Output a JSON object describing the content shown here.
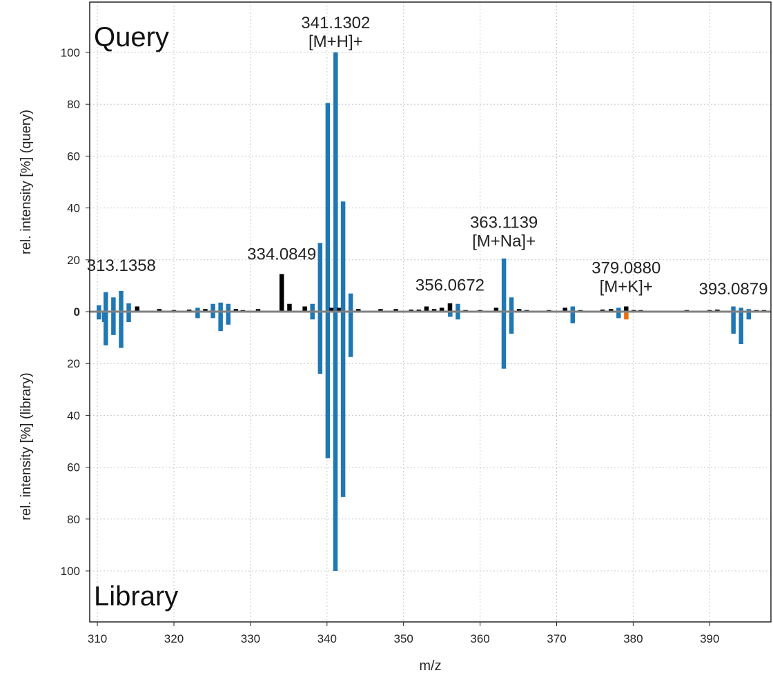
{
  "chart_data": {
    "type": "bar",
    "xlabel": "m/z",
    "ylabel_top": "rel. intensity [%] (query)",
    "ylabel_bottom": "rel. intensity [%] (library)",
    "top_label": "Query",
    "bottom_label": "Library",
    "xlim": [
      309,
      398
    ],
    "ylim_query": [
      0,
      112
    ],
    "ylim_library": [
      0,
      112
    ],
    "x_ticks": [
      310,
      320,
      330,
      340,
      350,
      360,
      370,
      380,
      390
    ],
    "y_ticks_query": [
      0,
      20,
      40,
      60,
      80,
      100
    ],
    "y_ticks_library": [
      20,
      40,
      60,
      80,
      100
    ],
    "grid": true,
    "colors": {
      "matched": "#1f77b4",
      "unmatched": "#000000",
      "highlight": "#e8710a",
      "baseline": "#808080",
      "grid": "#c8c8c8"
    },
    "query_peaks": [
      {
        "mz": 310.2,
        "intensity": 2.5,
        "matched": true
      },
      {
        "mz": 311.1,
        "intensity": 7.5,
        "matched": true
      },
      {
        "mz": 312.1,
        "intensity": 5.5,
        "matched": true
      },
      {
        "mz": 313.1,
        "intensity": 8.0,
        "matched": true
      },
      {
        "mz": 314.1,
        "intensity": 3.2,
        "matched": true
      },
      {
        "mz": 315.2,
        "intensity": 2.0,
        "matched": false
      },
      {
        "mz": 318.1,
        "intensity": 1.0,
        "matched": false
      },
      {
        "mz": 320.0,
        "intensity": 0.6,
        "matched": false
      },
      {
        "mz": 322.0,
        "intensity": 0.8,
        "matched": false
      },
      {
        "mz": 323.1,
        "intensity": 1.5,
        "matched": true
      },
      {
        "mz": 324.1,
        "intensity": 1.0,
        "matched": false
      },
      {
        "mz": 325.1,
        "intensity": 3.0,
        "matched": true
      },
      {
        "mz": 326.1,
        "intensity": 3.5,
        "matched": true
      },
      {
        "mz": 327.1,
        "intensity": 3.0,
        "matched": true
      },
      {
        "mz": 328.1,
        "intensity": 1.0,
        "matched": false
      },
      {
        "mz": 329.0,
        "intensity": 0.6,
        "matched": false
      },
      {
        "mz": 331.0,
        "intensity": 1.0,
        "matched": false
      },
      {
        "mz": 334.0849,
        "intensity": 14.5,
        "matched": false
      },
      {
        "mz": 335.1,
        "intensity": 3.0,
        "matched": false
      },
      {
        "mz": 337.1,
        "intensity": 2.0,
        "matched": false
      },
      {
        "mz": 338.1,
        "intensity": 3.0,
        "matched": true
      },
      {
        "mz": 339.1,
        "intensity": 26.5,
        "matched": true
      },
      {
        "mz": 340.1,
        "intensity": 80.5,
        "matched": true
      },
      {
        "mz": 340.6,
        "intensity": 1.5,
        "matched": false
      },
      {
        "mz": 341.1302,
        "intensity": 100.0,
        "matched": true
      },
      {
        "mz": 341.6,
        "intensity": 1.5,
        "matched": false
      },
      {
        "mz": 342.1,
        "intensity": 42.5,
        "matched": true
      },
      {
        "mz": 343.1,
        "intensity": 7.0,
        "matched": true
      },
      {
        "mz": 344.1,
        "intensity": 1.0,
        "matched": false
      },
      {
        "mz": 347.0,
        "intensity": 1.0,
        "matched": false
      },
      {
        "mz": 349.0,
        "intensity": 1.0,
        "matched": false
      },
      {
        "mz": 351.0,
        "intensity": 0.8,
        "matched": false
      },
      {
        "mz": 352.0,
        "intensity": 0.8,
        "matched": false
      },
      {
        "mz": 353.0,
        "intensity": 2.0,
        "matched": false
      },
      {
        "mz": 354.0,
        "intensity": 1.0,
        "matched": false
      },
      {
        "mz": 355.0,
        "intensity": 1.5,
        "matched": false
      },
      {
        "mz": 356.0672,
        "intensity": 3.2,
        "matched": false
      },
      {
        "mz": 357.1,
        "intensity": 3.0,
        "matched": true
      },
      {
        "mz": 358.1,
        "intensity": 0.6,
        "matched": false
      },
      {
        "mz": 360.0,
        "intensity": 0.6,
        "matched": false
      },
      {
        "mz": 362.1,
        "intensity": 1.5,
        "matched": false
      },
      {
        "mz": 363.1139,
        "intensity": 20.5,
        "matched": true
      },
      {
        "mz": 364.1,
        "intensity": 5.5,
        "matched": true
      },
      {
        "mz": 365.1,
        "intensity": 1.0,
        "matched": false
      },
      {
        "mz": 366.1,
        "intensity": 0.6,
        "matched": false
      },
      {
        "mz": 369.0,
        "intensity": 0.6,
        "matched": false
      },
      {
        "mz": 371.1,
        "intensity": 1.5,
        "matched": false
      },
      {
        "mz": 372.1,
        "intensity": 2.0,
        "matched": true
      },
      {
        "mz": 373.1,
        "intensity": 0.6,
        "matched": false
      },
      {
        "mz": 376.0,
        "intensity": 0.8,
        "matched": false
      },
      {
        "mz": 377.1,
        "intensity": 1.0,
        "matched": false
      },
      {
        "mz": 378.1,
        "intensity": 1.5,
        "matched": true
      },
      {
        "mz": 379.088,
        "intensity": 2.0,
        "matched": false
      },
      {
        "mz": 380.1,
        "intensity": 0.6,
        "matched": false
      },
      {
        "mz": 381.0,
        "intensity": 0.6,
        "matched": false
      },
      {
        "mz": 387.0,
        "intensity": 0.6,
        "matched": false
      },
      {
        "mz": 390.0,
        "intensity": 0.6,
        "matched": false
      },
      {
        "mz": 391.0,
        "intensity": 0.8,
        "matched": false
      },
      {
        "mz": 393.0879,
        "intensity": 2.0,
        "matched": true
      },
      {
        "mz": 394.1,
        "intensity": 1.5,
        "matched": true
      },
      {
        "mz": 395.1,
        "intensity": 1.0,
        "matched": true
      },
      {
        "mz": 396.1,
        "intensity": 0.6,
        "matched": false
      },
      {
        "mz": 397.1,
        "intensity": 0.6,
        "matched": false
      }
    ],
    "library_peaks": [
      {
        "mz": 310.2,
        "intensity": 3.0,
        "matched": true
      },
      {
        "mz": 310.9,
        "intensity": 4.0,
        "matched": true
      },
      {
        "mz": 311.1,
        "intensity": 13.0,
        "matched": true
      },
      {
        "mz": 312.1,
        "intensity": 9.0,
        "matched": true
      },
      {
        "mz": 313.1,
        "intensity": 14.0,
        "matched": true
      },
      {
        "mz": 314.1,
        "intensity": 4.0,
        "matched": true
      },
      {
        "mz": 323.1,
        "intensity": 2.5,
        "matched": true
      },
      {
        "mz": 325.1,
        "intensity": 2.5,
        "matched": true
      },
      {
        "mz": 326.1,
        "intensity": 7.5,
        "matched": true
      },
      {
        "mz": 327.1,
        "intensity": 5.0,
        "matched": true
      },
      {
        "mz": 338.1,
        "intensity": 3.0,
        "matched": true
      },
      {
        "mz": 339.1,
        "intensity": 24.0,
        "matched": true
      },
      {
        "mz": 340.1,
        "intensity": 56.5,
        "matched": true
      },
      {
        "mz": 341.1,
        "intensity": 100.0,
        "matched": true
      },
      {
        "mz": 342.1,
        "intensity": 71.5,
        "matched": true
      },
      {
        "mz": 343.1,
        "intensity": 17.5,
        "matched": true
      },
      {
        "mz": 356.1,
        "intensity": 2.0,
        "matched": true
      },
      {
        "mz": 357.1,
        "intensity": 3.0,
        "matched": true
      },
      {
        "mz": 363.1,
        "intensity": 22.0,
        "matched": true
      },
      {
        "mz": 364.1,
        "intensity": 8.5,
        "matched": true
      },
      {
        "mz": 372.1,
        "intensity": 4.5,
        "matched": true
      },
      {
        "mz": 378.1,
        "intensity": 2.5,
        "matched": true
      },
      {
        "mz": 379.1,
        "intensity": 3.0,
        "matched": false,
        "highlight": true
      },
      {
        "mz": 393.1,
        "intensity": 8.5,
        "matched": true
      },
      {
        "mz": 394.1,
        "intensity": 12.5,
        "matched": true
      },
      {
        "mz": 395.1,
        "intensity": 3.0,
        "matched": true
      }
    ],
    "annotations": [
      {
        "mz": 313.1358,
        "intensity": 13.5,
        "lines": [
          "313.1358"
        ]
      },
      {
        "mz": 334.0849,
        "intensity": 18.0,
        "lines": [
          "334.0849"
        ]
      },
      {
        "mz": 341.1302,
        "intensity": 100.0,
        "lines": [
          "341.1302",
          "[M+H]+"
        ]
      },
      {
        "mz": 356.0672,
        "intensity": 6.0,
        "lines": [
          "356.0672"
        ]
      },
      {
        "mz": 363.1139,
        "intensity": 23.0,
        "lines": [
          "363.1139",
          "[M+Na]+"
        ]
      },
      {
        "mz": 379.088,
        "intensity": 5.5,
        "lines": [
          "379.0880",
          "[M+K]+"
        ]
      },
      {
        "mz": 393.0879,
        "intensity": 4.5,
        "lines": [
          "393.0879"
        ]
      }
    ]
  }
}
